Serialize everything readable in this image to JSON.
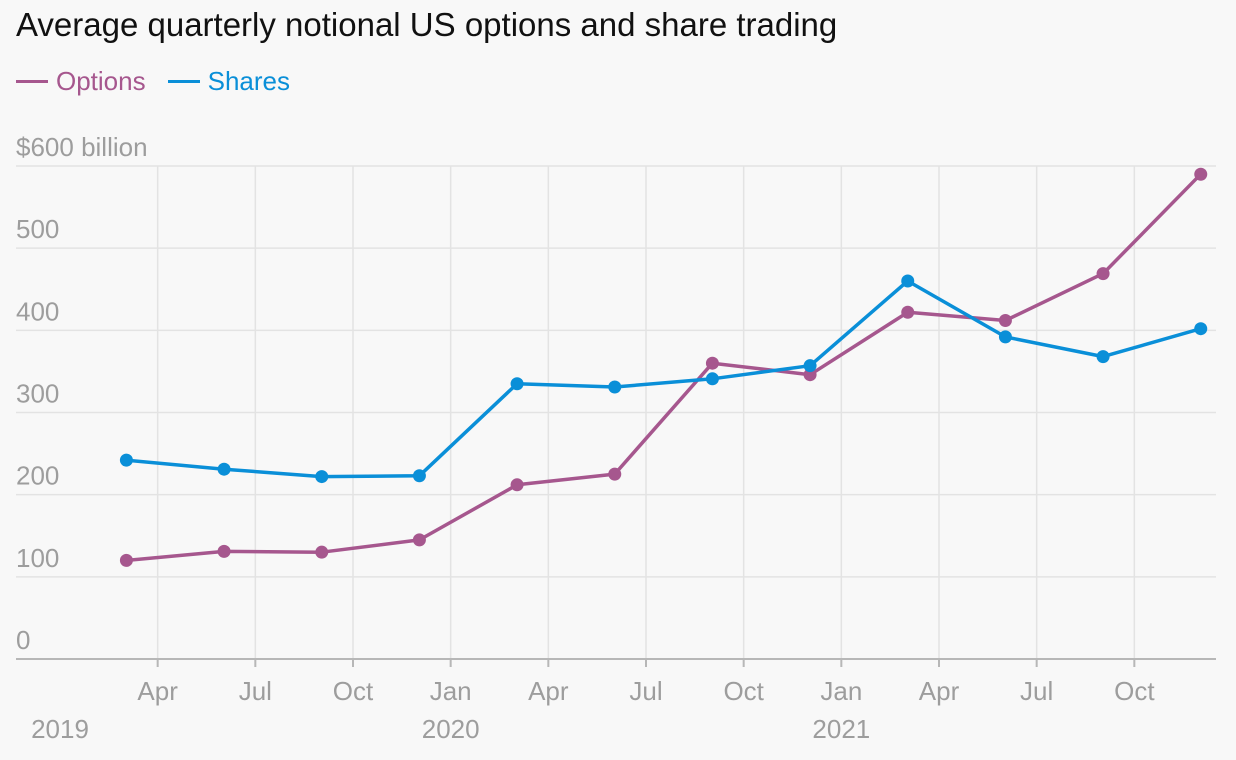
{
  "title": "Average quarterly notional US options and share trading",
  "colors": {
    "options": "#a6578e",
    "shares": "#0a8fd8",
    "grid": "#e3e3e3",
    "axis": "#b7b7b7",
    "tick_text": "#9d9d9d"
  },
  "chart_data": {
    "type": "line",
    "title": "Average quarterly notional US options and share trading",
    "ylabel": "$ billion",
    "ylim": [
      0,
      600
    ],
    "y_ticks": [
      {
        "value": 0,
        "label": "0"
      },
      {
        "value": 100,
        "label": "100"
      },
      {
        "value": 200,
        "label": "200"
      },
      {
        "value": 300,
        "label": "300"
      },
      {
        "value": 400,
        "label": "400"
      },
      {
        "value": 500,
        "label": "500"
      },
      {
        "value": 600,
        "label": "$600 billion"
      }
    ],
    "x_domain": [
      2019.0,
      2022.0
    ],
    "x_ticks": [
      {
        "x": 2019.25,
        "label": "Apr"
      },
      {
        "x": 2019.5,
        "label": "Jul"
      },
      {
        "x": 2019.75,
        "label": "Oct"
      },
      {
        "x": 2020.0,
        "label": "Jan"
      },
      {
        "x": 2020.25,
        "label": "Apr"
      },
      {
        "x": 2020.5,
        "label": "Jul"
      },
      {
        "x": 2020.75,
        "label": "Oct"
      },
      {
        "x": 2021.0,
        "label": "Jan"
      },
      {
        "x": 2021.25,
        "label": "Apr"
      },
      {
        "x": 2021.5,
        "label": "Jul"
      },
      {
        "x": 2021.75,
        "label": "Oct"
      }
    ],
    "year_labels": [
      {
        "x": 2019.0,
        "label": "2019"
      },
      {
        "x": 2020.0,
        "label": "2020"
      },
      {
        "x": 2021.0,
        "label": "2021"
      }
    ],
    "x": [
      2019.17,
      2019.42,
      2019.67,
      2019.92,
      2020.17,
      2020.42,
      2020.67,
      2020.92,
      2021.17,
      2021.42,
      2021.67,
      2021.92
    ],
    "series": [
      {
        "name": "Options",
        "key": "options",
        "values": [
          120,
          131,
          130,
          145,
          212,
          225,
          360,
          346,
          422,
          412,
          469,
          590
        ]
      },
      {
        "name": "Shares",
        "key": "shares",
        "values": [
          242,
          231,
          222,
          223,
          335,
          331,
          341,
          357,
          460,
          392,
          368,
          402
        ]
      }
    ]
  }
}
